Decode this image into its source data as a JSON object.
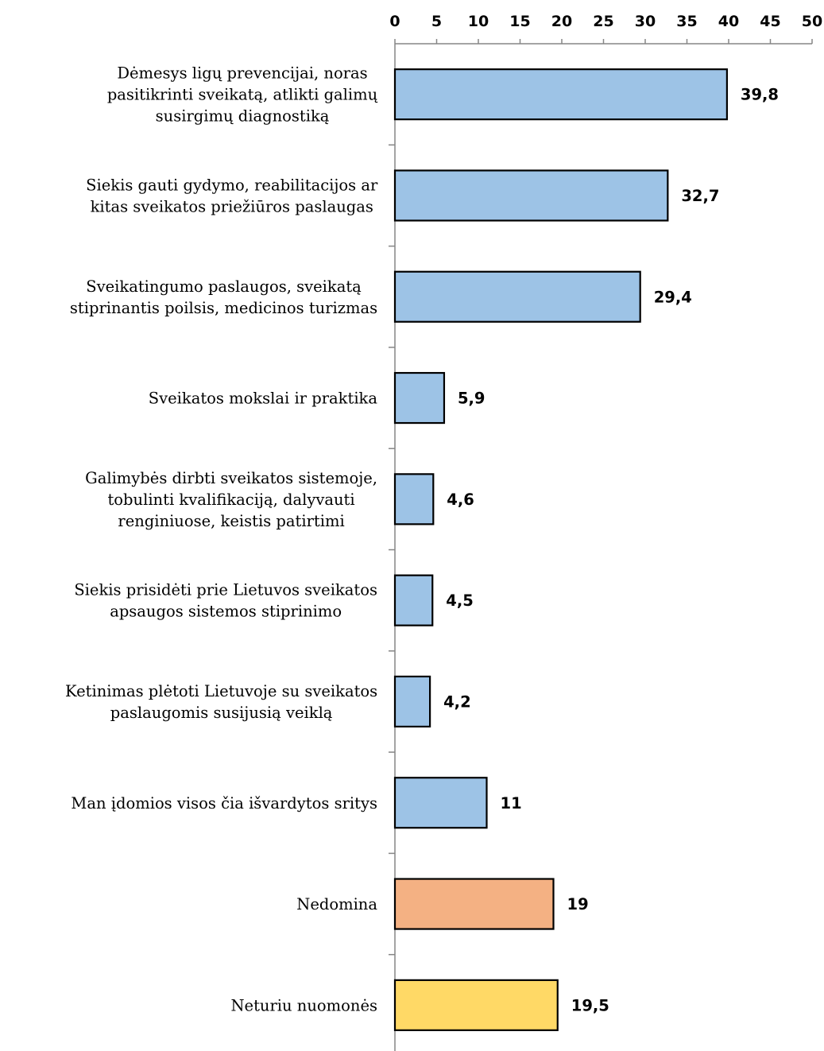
{
  "chart_data": {
    "type": "bar",
    "orientation": "horizontal",
    "title": "",
    "xlabel": "",
    "ylabel": "",
    "xlim": [
      0,
      50
    ],
    "x_ticks": [
      0,
      5,
      10,
      15,
      20,
      25,
      30,
      35,
      40,
      45,
      50
    ],
    "x_axis_position": "top",
    "grid": false,
    "legend": "none",
    "bars": [
      {
        "label_lines": [
          "Dėmesys ligų prevencijai, noras",
          "pasitikrinti sveikatą, atlikti galimų",
          "susirgimų diagnostiką"
        ],
        "value": 39.8,
        "value_label": "39,8",
        "color": "#9dc3e6"
      },
      {
        "label_lines": [
          "Siekis gauti gydymo, reabilitacijos ar",
          "kitas sveikatos priežiūros paslaugas"
        ],
        "value": 32.7,
        "value_label": "32,7",
        "color": "#9dc3e6"
      },
      {
        "label_lines": [
          "Sveikatingumo paslaugos, sveikatą",
          "stiprinantis poilsis, medicinos turizmas"
        ],
        "value": 29.4,
        "value_label": "29,4",
        "color": "#9dc3e6"
      },
      {
        "label_lines": [
          "Sveikatos mokslai ir praktika"
        ],
        "value": 5.9,
        "value_label": "5,9",
        "color": "#9dc3e6"
      },
      {
        "label_lines": [
          "Galimybės dirbti sveikatos sistemoje,",
          "tobulinti kvalifikaciją, dalyvauti",
          "renginiuose, keistis patirtimi"
        ],
        "value": 4.6,
        "value_label": "4,6",
        "color": "#9dc3e6"
      },
      {
        "label_lines": [
          "Siekis prisidėti prie Lietuvos sveikatos",
          "apsaugos sistemos stiprinimo"
        ],
        "value": 4.5,
        "value_label": "4,5",
        "color": "#9dc3e6"
      },
      {
        "label_lines": [
          "Ketinimas plėtoti Lietuvoje su sveikatos",
          "paslaugomis susijusią veiklą"
        ],
        "value": 4.2,
        "value_label": "4,2",
        "color": "#9dc3e6"
      },
      {
        "label_lines": [
          "Man įdomios visos čia išvardytos sritys"
        ],
        "value": 11,
        "value_label": "11",
        "color": "#9dc3e6"
      },
      {
        "label_lines": [
          "Nedomina"
        ],
        "value": 19,
        "value_label": "19",
        "color": "#f4b183"
      },
      {
        "label_lines": [
          "Neturiu nuomonės"
        ],
        "value": 19.5,
        "value_label": "19,5",
        "color": "#ffd966"
      }
    ]
  }
}
